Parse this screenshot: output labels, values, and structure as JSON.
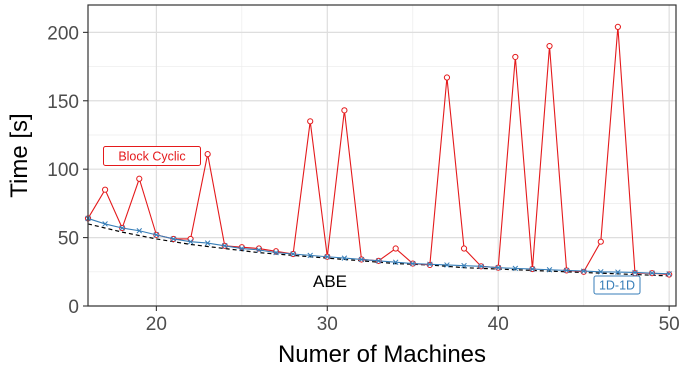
{
  "chart_data": {
    "type": "line",
    "title": "",
    "xlabel": "Numer of Machines",
    "ylabel": "Time [s]",
    "xlim": [
      16,
      50.4
    ],
    "ylim": [
      0,
      220
    ],
    "xticks": [
      20,
      30,
      40,
      50
    ],
    "yticks": [
      0,
      50,
      100,
      150,
      200
    ],
    "grid": true,
    "legend": "none",
    "series": [
      {
        "name": "Block Cyclic",
        "color": "#e41a1c",
        "marker": "circle",
        "x": [
          16,
          17,
          18,
          19,
          20,
          21,
          22,
          23,
          24,
          25,
          26,
          27,
          28,
          29,
          30,
          31,
          32,
          33,
          34,
          35,
          36,
          37,
          38,
          39,
          40,
          41,
          42,
          43,
          44,
          45,
          46,
          47,
          48,
          49,
          50
        ],
        "y": [
          64,
          85,
          57,
          93,
          52,
          49,
          49,
          111,
          44,
          43,
          42,
          40,
          38,
          135,
          36,
          143,
          34,
          33,
          42,
          31,
          30,
          167,
          42,
          29,
          28,
          182,
          27,
          190,
          26,
          25,
          47,
          204,
          24,
          24,
          23
        ]
      },
      {
        "name": "1D-1D",
        "color": "#377eb8",
        "marker": "x",
        "x": [
          16,
          17,
          18,
          19,
          20,
          21,
          22,
          23,
          24,
          25,
          26,
          27,
          28,
          29,
          30,
          31,
          32,
          33,
          34,
          35,
          36,
          37,
          38,
          39,
          40,
          41,
          42,
          43,
          44,
          45,
          46,
          47,
          48,
          49,
          50
        ],
        "y": [
          64,
          60,
          57,
          55,
          52,
          49,
          47,
          46,
          44,
          42,
          41,
          39,
          38,
          37,
          36,
          35,
          34,
          33,
          32,
          31,
          30.5,
          30,
          29.5,
          29,
          28,
          27.5,
          27,
          26.5,
          26,
          25.5,
          25,
          24.8,
          24.5,
          24,
          23.5
        ]
      },
      {
        "name": "ABE",
        "color": "#000000",
        "style": "dashed",
        "x": [
          16,
          18,
          20,
          22,
          24,
          26,
          28,
          30,
          32,
          34,
          36,
          38,
          40,
          42,
          44,
          46,
          48,
          50
        ],
        "y": [
          60,
          54,
          49,
          45,
          42,
          39,
          37,
          35,
          33,
          31,
          30,
          28,
          27,
          26,
          25,
          24,
          23,
          22
        ]
      }
    ],
    "annotations": [
      {
        "text": "Block Cyclic",
        "color": "#e41a1c"
      },
      {
        "text": "1D-1D",
        "color": "#377eb8"
      },
      {
        "text": "ABE",
        "color": "#000000"
      }
    ]
  }
}
